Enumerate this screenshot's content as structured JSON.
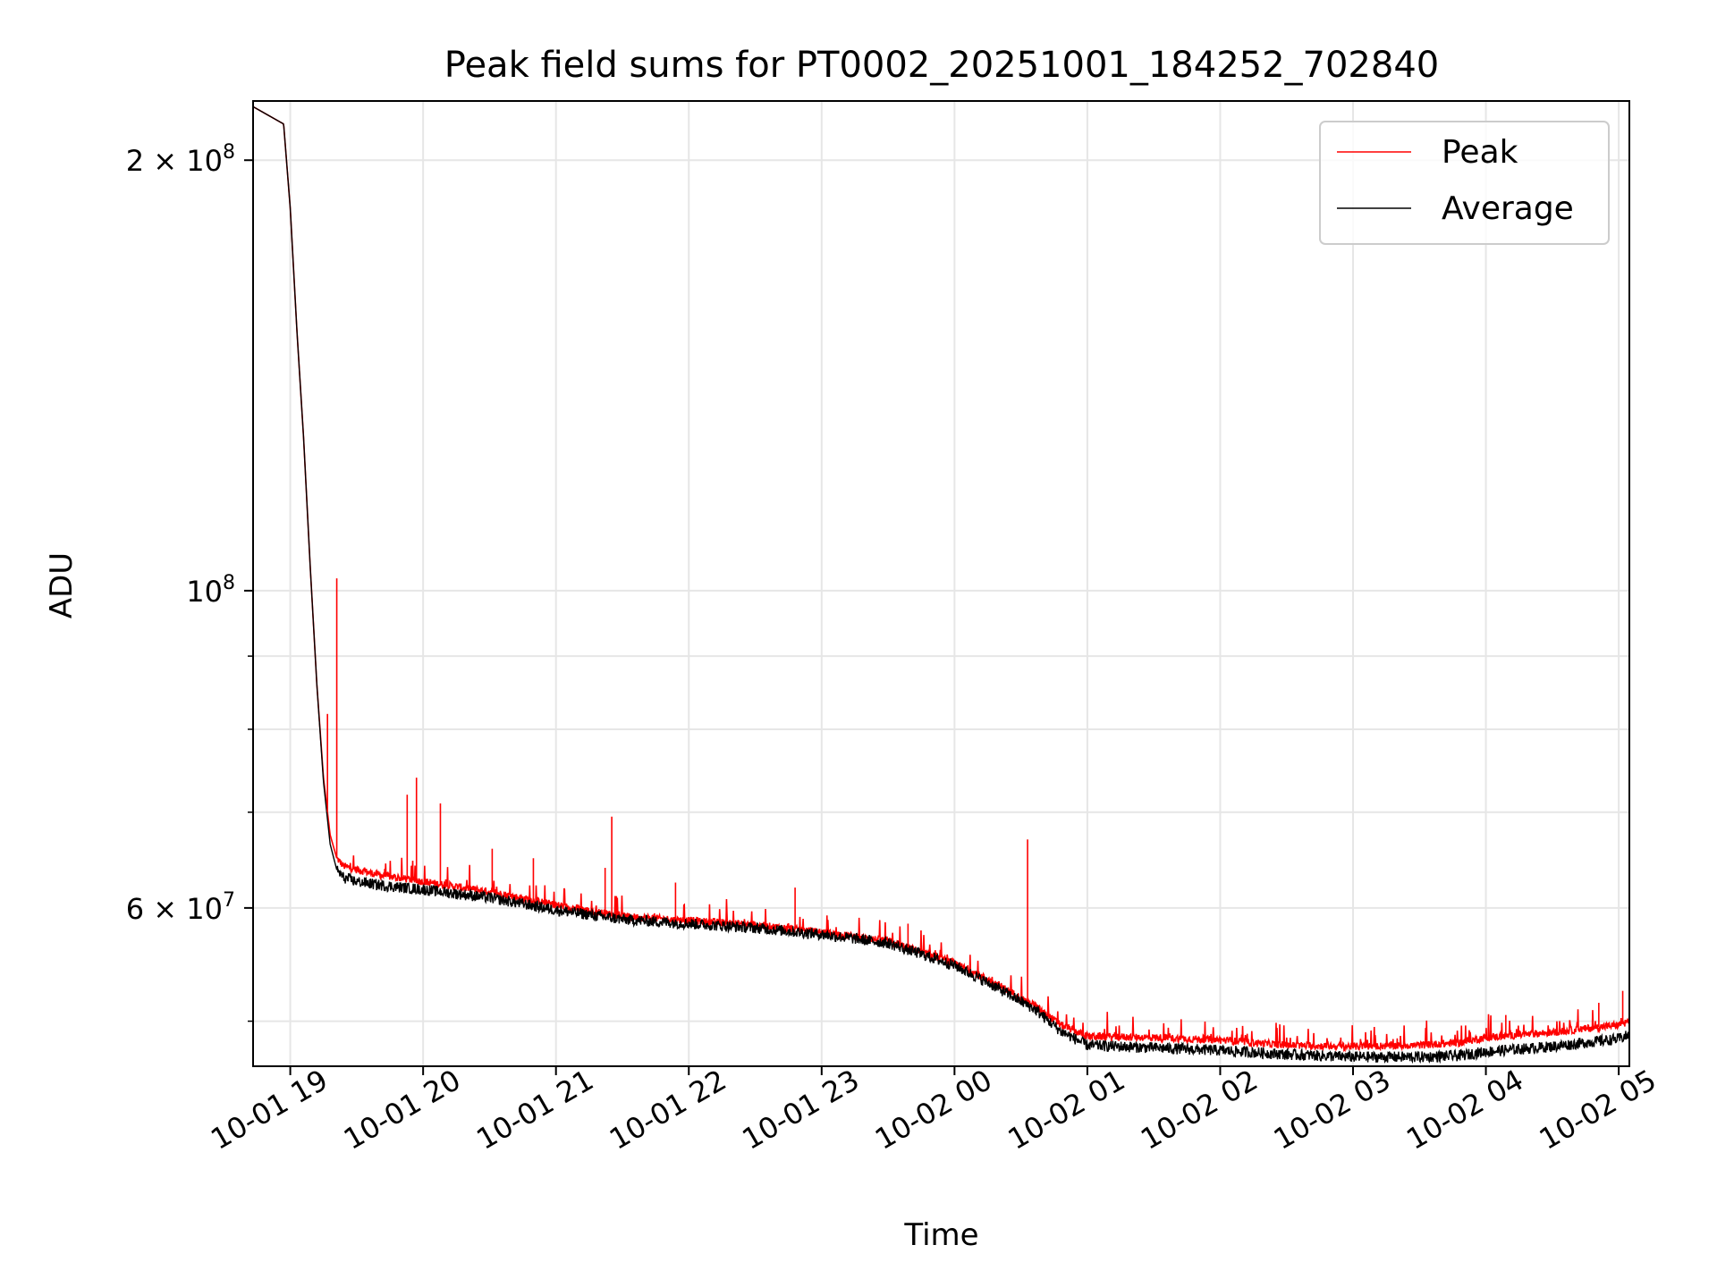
{
  "chart_data": {
    "type": "line",
    "title": "Peak field sums for PT0002_20251001_184252_702840",
    "xlabel": "Time",
    "ylabel": "ADU",
    "yscale": "log",
    "ylim": [
      46500000,
      220000000
    ],
    "xlim_hours": [
      18.72,
      29.08
    ],
    "grid": true,
    "legend_position": "top-right",
    "x_ticks": [
      {
        "hour": 19,
        "label": "10-01 19"
      },
      {
        "hour": 20,
        "label": "10-01 20"
      },
      {
        "hour": 21,
        "label": "10-01 21"
      },
      {
        "hour": 22,
        "label": "10-01 22"
      },
      {
        "hour": 23,
        "label": "10-01 23"
      },
      {
        "hour": 24,
        "label": "10-02 00"
      },
      {
        "hour": 25,
        "label": "10-02 01"
      },
      {
        "hour": 26,
        "label": "10-02 02"
      },
      {
        "hour": 27,
        "label": "10-02 03"
      },
      {
        "hour": 28,
        "label": "10-02 04"
      },
      {
        "hour": 29,
        "label": "10-02 05"
      }
    ],
    "y_major_ticks": [
      {
        "value": 200000000,
        "base": "2 × 10",
        "exp": "8"
      },
      {
        "value": 100000000,
        "base": "10",
        "exp": "8"
      },
      {
        "value": 60000000,
        "base": "6 × 10",
        "exp": "7"
      }
    ],
    "y_minor_ticks": [
      50000000,
      70000000,
      80000000,
      90000000
    ],
    "series": [
      {
        "name": "Peak",
        "color": "#ff0000",
        "x": [
          18.72,
          18.95,
          19.0,
          19.05,
          19.1,
          19.15,
          19.2,
          19.25,
          19.3,
          19.35,
          19.4,
          19.5,
          19.7,
          20.0,
          20.5,
          21.0,
          21.5,
          22.0,
          22.5,
          23.0,
          23.5,
          24.0,
          24.3,
          24.6,
          24.8,
          25.0,
          25.5,
          26.0,
          26.5,
          27.0,
          27.5,
          27.8,
          28.0,
          28.5,
          29.0,
          29.08
        ],
        "values": [
          218000000,
          212000000,
          185000000,
          152000000,
          128000000,
          104000000,
          86000000,
          74000000,
          67500000,
          65000000,
          64200000,
          63800000,
          63200000,
          62600000,
          61600000,
          60300000,
          59200000,
          58800000,
          58400000,
          57700000,
          56900000,
          54900000,
          53200000,
          51300000,
          49700000,
          48800000,
          48700000,
          48500000,
          48100000,
          48000000,
          48100000,
          48300000,
          48700000,
          49100000,
          49700000,
          50000000
        ]
      },
      {
        "name": "Average",
        "color": "#000000",
        "x": [
          18.72,
          18.95,
          19.0,
          19.05,
          19.1,
          19.15,
          19.2,
          19.25,
          19.3,
          19.35,
          19.4,
          19.5,
          19.7,
          20.0,
          20.5,
          21.0,
          21.5,
          22.0,
          22.5,
          23.0,
          23.5,
          24.0,
          24.3,
          24.6,
          24.8,
          25.0,
          25.5,
          26.0,
          26.5,
          27.0,
          27.5,
          27.8,
          28.0,
          28.5,
          29.0,
          29.08
        ],
        "values": [
          218000000,
          212000000,
          185000000,
          152000000,
          128000000,
          104000000,
          86000000,
          73500000,
          66500000,
          63800000,
          63000000,
          62600000,
          62200000,
          61800000,
          61000000,
          59800000,
          58900000,
          58500000,
          58100000,
          57500000,
          56700000,
          54700000,
          52900000,
          51000000,
          49200000,
          48100000,
          47900000,
          47700000,
          47400000,
          47200000,
          47200000,
          47300000,
          47600000,
          48000000,
          48600000,
          48900000
        ]
      }
    ],
    "spikes": [
      {
        "hour": 19.28,
        "value": 82000000
      },
      {
        "hour": 19.35,
        "value": 102000000
      },
      {
        "hour": 19.88,
        "value": 72000000
      },
      {
        "hour": 19.95,
        "value": 74000000
      },
      {
        "hour": 20.13,
        "value": 71000000
      },
      {
        "hour": 20.52,
        "value": 66000000
      },
      {
        "hour": 20.83,
        "value": 65000000
      },
      {
        "hour": 21.37,
        "value": 64000000
      },
      {
        "hour": 21.42,
        "value": 69500000
      },
      {
        "hour": 21.9,
        "value": 62500000
      },
      {
        "hour": 22.8,
        "value": 62000000
      },
      {
        "hour": 23.65,
        "value": 58500000
      },
      {
        "hour": 24.55,
        "value": 67000000
      },
      {
        "hour": 28.15,
        "value": 50500000
      },
      {
        "hour": 28.85,
        "value": 51500000
      },
      {
        "hour": 29.03,
        "value": 52500000
      }
    ]
  }
}
